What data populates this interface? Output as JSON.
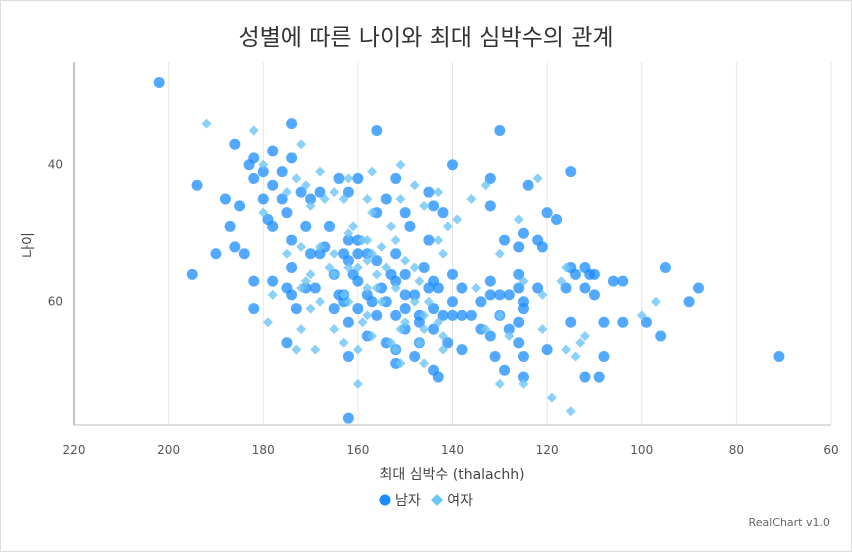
{
  "chart_data": {
    "type": "scatter",
    "title": "성별에 따른 나이와 최대 심박수의 관계",
    "xlabel": "최대 심박수 (thalachh)",
    "ylabel": "나이",
    "xlim": [
      220,
      60
    ],
    "x_reversed": true,
    "ylim": [
      25,
      78
    ],
    "y_reversed": true,
    "xticks": [
      220,
      200,
      180,
      160,
      140,
      120,
      100,
      80,
      60
    ],
    "yticks": [
      40,
      60
    ],
    "grid": "vertical",
    "legend_position": "bottom",
    "series": [
      {
        "name": "남자",
        "marker": "circle",
        "color": "#1a8cff",
        "points": [
          [
            202,
            28
          ],
          [
            174,
            34
          ],
          [
            156,
            35
          ],
          [
            130,
            35
          ],
          [
            186,
            37
          ],
          [
            178,
            38
          ],
          [
            182,
            39
          ],
          [
            174,
            39
          ],
          [
            176,
            41
          ],
          [
            180,
            41
          ],
          [
            183,
            40
          ],
          [
            140,
            40
          ],
          [
            115,
            41
          ],
          [
            194,
            43
          ],
          [
            178,
            43
          ],
          [
            164,
            42
          ],
          [
            182,
            42
          ],
          [
            160,
            42
          ],
          [
            152,
            42
          ],
          [
            132,
            42
          ],
          [
            124,
            43
          ],
          [
            172,
            44
          ],
          [
            168,
            44
          ],
          [
            162,
            44
          ],
          [
            145,
            44
          ],
          [
            188,
            45
          ],
          [
            180,
            45
          ],
          [
            176,
            45
          ],
          [
            170,
            45
          ],
          [
            154,
            45
          ],
          [
            132,
            46
          ],
          [
            185,
            46
          ],
          [
            144,
            46
          ],
          [
            120,
            47
          ],
          [
            175,
            47
          ],
          [
            156,
            47
          ],
          [
            150,
            47
          ],
          [
            142,
            47
          ],
          [
            118,
            48
          ],
          [
            166,
            49
          ],
          [
            179,
            48
          ],
          [
            187,
            49
          ],
          [
            178,
            49
          ],
          [
            171,
            49
          ],
          [
            149,
            49
          ],
          [
            125,
            50
          ],
          [
            160,
            51
          ],
          [
            145,
            51
          ],
          [
            162,
            51
          ],
          [
            129,
            51
          ],
          [
            122,
            51
          ],
          [
            174,
            51
          ],
          [
            121,
            52
          ],
          [
            126,
            52
          ],
          [
            167,
            52
          ],
          [
            186,
            52
          ],
          [
            170,
            53
          ],
          [
            190,
            53
          ],
          [
            184,
            53
          ],
          [
            163,
            53
          ],
          [
            160,
            53
          ],
          [
            158,
            53
          ],
          [
            152,
            53
          ],
          [
            168,
            53
          ],
          [
            156,
            54
          ],
          [
            174,
            55
          ],
          [
            146,
            55
          ],
          [
            162,
            54
          ],
          [
            115,
            55
          ],
          [
            112,
            55
          ],
          [
            95,
            55
          ],
          [
            195,
            56
          ],
          [
            165,
            56
          ],
          [
            161,
            56
          ],
          [
            153,
            56
          ],
          [
            150,
            56
          ],
          [
            140,
            56
          ],
          [
            126,
            56
          ],
          [
            114,
            56
          ],
          [
            111,
            56
          ],
          [
            110,
            56
          ],
          [
            182,
            57
          ],
          [
            178,
            57
          ],
          [
            160,
            57
          ],
          [
            152,
            57
          ],
          [
            144,
            57
          ],
          [
            132,
            57
          ],
          [
            104,
            57
          ],
          [
            106,
            57
          ],
          [
            169,
            58
          ],
          [
            175,
            58
          ],
          [
            171,
            58
          ],
          [
            155,
            58
          ],
          [
            145,
            58
          ],
          [
            143,
            58
          ],
          [
            138,
            58
          ],
          [
            126,
            58
          ],
          [
            122,
            58
          ],
          [
            116,
            58
          ],
          [
            112,
            58
          ],
          [
            88,
            58
          ],
          [
            174,
            59
          ],
          [
            164,
            59
          ],
          [
            158,
            59
          ],
          [
            163,
            59
          ],
          [
            150,
            59
          ],
          [
            148,
            59
          ],
          [
            130,
            59
          ],
          [
            128,
            59
          ],
          [
            110,
            59
          ],
          [
            163,
            60
          ],
          [
            157,
            60
          ],
          [
            154,
            60
          ],
          [
            140,
            60
          ],
          [
            134,
            60
          ],
          [
            132,
            59
          ],
          [
            125,
            60
          ],
          [
            90,
            60
          ],
          [
            182,
            61
          ],
          [
            173,
            61
          ],
          [
            165,
            61
          ],
          [
            160,
            61
          ],
          [
            150,
            61
          ],
          [
            144,
            61
          ],
          [
            138,
            62
          ],
          [
            136,
            62
          ],
          [
            125,
            61
          ],
          [
            156,
            62
          ],
          [
            152,
            62
          ],
          [
            147,
            62
          ],
          [
            142,
            62
          ],
          [
            140,
            62
          ],
          [
            130,
            62
          ],
          [
            126,
            63
          ],
          [
            115,
            63
          ],
          [
            108,
            63
          ],
          [
            104,
            63
          ],
          [
            99,
            63
          ],
          [
            147,
            63
          ],
          [
            162,
            63
          ],
          [
            150,
            64
          ],
          [
            144,
            64
          ],
          [
            134,
            64
          ],
          [
            128,
            64
          ],
          [
            96,
            65
          ],
          [
            158,
            65
          ],
          [
            132,
            65
          ],
          [
            154,
            66
          ],
          [
            147,
            66
          ],
          [
            141,
            66
          ],
          [
            138,
            67
          ],
          [
            126,
            66
          ],
          [
            175,
            66
          ],
          [
            120,
            67
          ],
          [
            152,
            67
          ],
          [
            162,
            68
          ],
          [
            148,
            68
          ],
          [
            131,
            68
          ],
          [
            125,
            68
          ],
          [
            71,
            68
          ],
          [
            108,
            68
          ],
          [
            152,
            69
          ],
          [
            144,
            70
          ],
          [
            129,
            70
          ],
          [
            112,
            71
          ],
          [
            109,
            71
          ],
          [
            143,
            71
          ],
          [
            125,
            71
          ],
          [
            162,
            77
          ]
        ]
      },
      {
        "name": "여자",
        "marker": "diamond",
        "color": "#6ec6f5",
        "points": [
          [
            192,
            34
          ],
          [
            182,
            35
          ],
          [
            172,
            37
          ],
          [
            180,
            40
          ],
          [
            151,
            40
          ],
          [
            173,
            42
          ],
          [
            162,
            42
          ],
          [
            157,
            41
          ],
          [
            168,
            41
          ],
          [
            171,
            43
          ],
          [
            122,
            42
          ],
          [
            148,
            43
          ],
          [
            143,
            44
          ],
          [
            133,
            43
          ],
          [
            175,
            44
          ],
          [
            165,
            44
          ],
          [
            158,
            45
          ],
          [
            136,
            45
          ],
          [
            167,
            45
          ],
          [
            163,
            45
          ],
          [
            151,
            45
          ],
          [
            146,
            46
          ],
          [
            180,
            47
          ],
          [
            170,
            46
          ],
          [
            157,
            47
          ],
          [
            139,
            48
          ],
          [
            126,
            48
          ],
          [
            161,
            49
          ],
          [
            162,
            50
          ],
          [
            153,
            49
          ],
          [
            141,
            49
          ],
          [
            158,
            51
          ],
          [
            172,
            52
          ],
          [
            168,
            52
          ],
          [
            155,
            52
          ],
          [
            152,
            51
          ],
          [
            143,
            51
          ],
          [
            159,
            51
          ],
          [
            165,
            53
          ],
          [
            175,
            53
          ],
          [
            157,
            53
          ],
          [
            142,
            53
          ],
          [
            130,
            53
          ],
          [
            116,
            55
          ],
          [
            150,
            54
          ],
          [
            158,
            54
          ],
          [
            166,
            55
          ],
          [
            162,
            55
          ],
          [
            148,
            55
          ],
          [
            154,
            55
          ],
          [
            160,
            55
          ],
          [
            165,
            56
          ],
          [
            156,
            56
          ],
          [
            170,
            56
          ],
          [
            171,
            57
          ],
          [
            147,
            57
          ],
          [
            125,
            57
          ],
          [
            117,
            57
          ],
          [
            172,
            58
          ],
          [
            158,
            58
          ],
          [
            163,
            59
          ],
          [
            156,
            58
          ],
          [
            152,
            58
          ],
          [
            178,
            59
          ],
          [
            135,
            58
          ],
          [
            121,
            59
          ],
          [
            162,
            60
          ],
          [
            155,
            60
          ],
          [
            148,
            60
          ],
          [
            145,
            60
          ],
          [
            168,
            60
          ],
          [
            97,
            60
          ],
          [
            170,
            61
          ],
          [
            158,
            62
          ],
          [
            146,
            62
          ],
          [
            130,
            62
          ],
          [
            100,
            62
          ],
          [
            179,
            63
          ],
          [
            159,
            63
          ],
          [
            150,
            63
          ],
          [
            143,
            63
          ],
          [
            133,
            64
          ],
          [
            165,
            64
          ],
          [
            172,
            64
          ],
          [
            157,
            65
          ],
          [
            146,
            64
          ],
          [
            151,
            64
          ],
          [
            112,
            65
          ],
          [
            113,
            66
          ],
          [
            121,
            64
          ],
          [
            142,
            65
          ],
          [
            163,
            66
          ],
          [
            153,
            66
          ],
          [
            147,
            66
          ],
          [
            128,
            65
          ],
          [
            169,
            67
          ],
          [
            152,
            67
          ],
          [
            173,
            67
          ],
          [
            160,
            67
          ],
          [
            142,
            67
          ],
          [
            116,
            67
          ],
          [
            114,
            68
          ],
          [
            125,
            72
          ],
          [
            160,
            72
          ],
          [
            151,
            69
          ],
          [
            146,
            69
          ],
          [
            130,
            72
          ],
          [
            119,
            74
          ],
          [
            115,
            76
          ]
        ]
      }
    ]
  },
  "credits": "RealChart v1.0"
}
